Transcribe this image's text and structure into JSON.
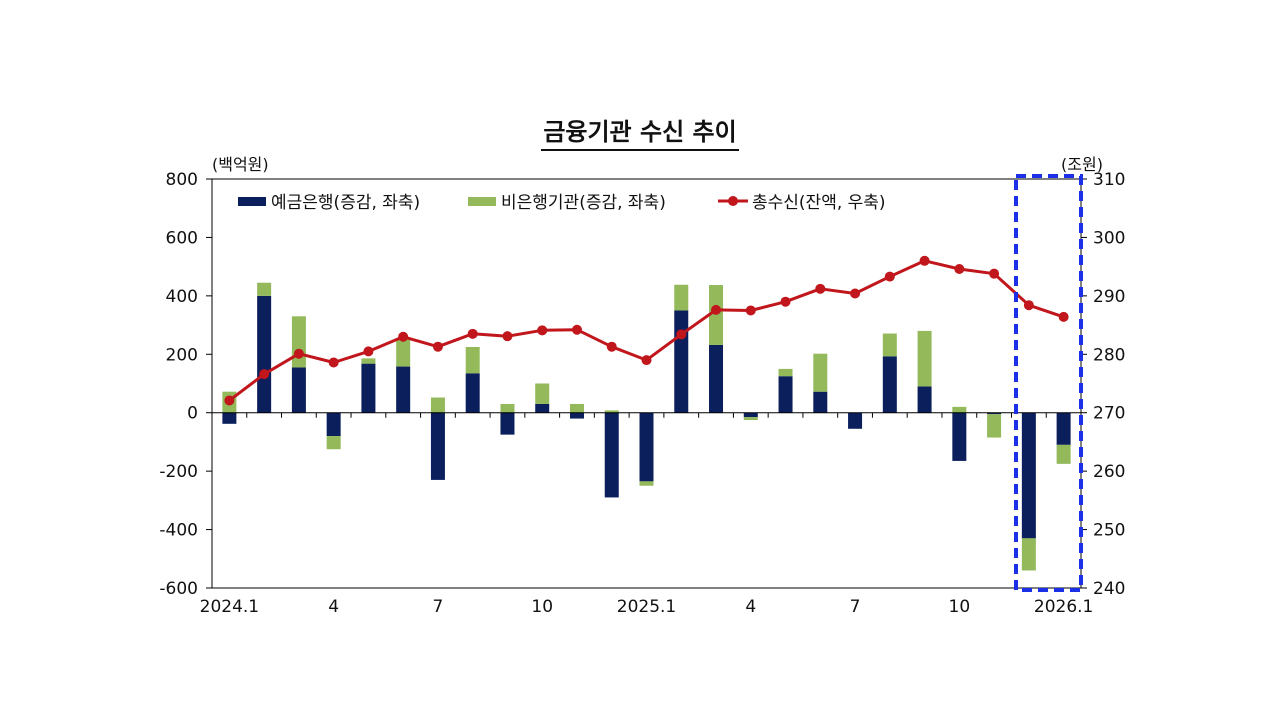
{
  "chart_data": {
    "type": "bar",
    "title": "금융기관 수신 추이",
    "left_unit": "(백억원)",
    "right_unit": "(조원)",
    "x_tick_labels": [
      {
        "index": 0,
        "label": "2024.1"
      },
      {
        "index": 3,
        "label": "4"
      },
      {
        "index": 6,
        "label": "7"
      },
      {
        "index": 9,
        "label": "10"
      },
      {
        "index": 12,
        "label": "2025.1"
      },
      {
        "index": 15,
        "label": "4"
      },
      {
        "index": 18,
        "label": "7"
      },
      {
        "index": 21,
        "label": "10"
      },
      {
        "index": 24,
        "label": "2026.1"
      }
    ],
    "categories": [
      "2024.1",
      "2024.2",
      "2024.3",
      "2024.4",
      "2024.5",
      "2024.6",
      "2024.7",
      "2024.8",
      "2024.9",
      "2024.10",
      "2024.11",
      "2024.12",
      "2025.1",
      "2025.2",
      "2025.3",
      "2025.4",
      "2025.5",
      "2025.6",
      "2025.7",
      "2025.8",
      "2025.9",
      "2025.10",
      "2025.11",
      "2025.12",
      "2026.1"
    ],
    "left_axis": {
      "min": -600,
      "max": 800,
      "ticks": [
        -600,
        -400,
        -200,
        0,
        200,
        400,
        600,
        800
      ]
    },
    "right_axis": {
      "min": 240,
      "max": 310,
      "ticks": [
        240,
        250,
        260,
        270,
        280,
        290,
        300,
        310
      ]
    },
    "series": [
      {
        "name": "예금은행(증감, 좌축)",
        "type": "stacked-bar",
        "axis": "left",
        "color": "#0b1f5c",
        "values": [
          -38,
          400,
          155,
          -80,
          168,
          158,
          -230,
          135,
          -75,
          30,
          -20,
          -290,
          -235,
          350,
          232,
          -15,
          125,
          72,
          -55,
          193,
          90,
          -165,
          -5,
          -430,
          -110
        ]
      },
      {
        "name": "비은행기관(증감, 좌축)",
        "type": "stacked-bar",
        "axis": "left",
        "color": "#93b95a",
        "values": [
          72,
          45,
          175,
          -45,
          18,
          95,
          52,
          90,
          30,
          70,
          30,
          8,
          -15,
          88,
          205,
          -10,
          25,
          130,
          0,
          78,
          190,
          20,
          -80,
          -110,
          -65
        ]
      },
      {
        "name": "총수신(잔액, 우축)",
        "type": "line",
        "axis": "right",
        "color": "#c0161c",
        "values": [
          272.1,
          276.6,
          280.1,
          278.6,
          280.5,
          283.0,
          281.3,
          283.5,
          283.1,
          284.1,
          284.2,
          281.3,
          279.0,
          283.4,
          287.6,
          287.5,
          289.0,
          291.2,
          290.4,
          293.3,
          296.0,
          294.6,
          293.8,
          288.4,
          286.4
        ]
      }
    ],
    "legend_position": "top-left",
    "highlight": {
      "from": "2025.12",
      "to": "2026.1",
      "style": "dashed-blue-box"
    }
  }
}
